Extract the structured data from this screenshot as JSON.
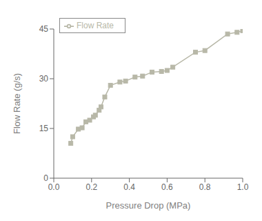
{
  "chart_data": {
    "type": "line",
    "xlabel": "Pressure Drop (MPa)",
    "ylabel": "Flow Rate (g/s)",
    "x": [
      0.09,
      0.1,
      0.13,
      0.15,
      0.17,
      0.19,
      0.21,
      0.22,
      0.24,
      0.25,
      0.27,
      0.3,
      0.35,
      0.38,
      0.43,
      0.47,
      0.52,
      0.57,
      0.6,
      0.63,
      0.75,
      0.8,
      0.92,
      0.97,
      1.0
    ],
    "series": [
      {
        "name": "Flow Rate",
        "color": "#b8b8a8",
        "marker": "square",
        "values": [
          10.5,
          12.5,
          14.8,
          15.2,
          17.0,
          17.5,
          18.5,
          19.0,
          20.5,
          21.5,
          24.5,
          28.0,
          29.0,
          29.3,
          30.5,
          30.8,
          32.0,
          32.2,
          32.5,
          33.5,
          38.0,
          38.5,
          43.5,
          44.0,
          44.5
        ]
      }
    ],
    "xlim": [
      0.0,
      1.0
    ],
    "ylim": [
      0,
      45
    ],
    "xticks": [
      {
        "value": 0.0,
        "label": "0.0"
      },
      0.2,
      0.4,
      0.6,
      0.8,
      {
        "value": 1.0,
        "label": "1.0"
      }
    ],
    "yticks": [
      0,
      15,
      30,
      45
    ],
    "grid": false,
    "legend": "upper left"
  }
}
